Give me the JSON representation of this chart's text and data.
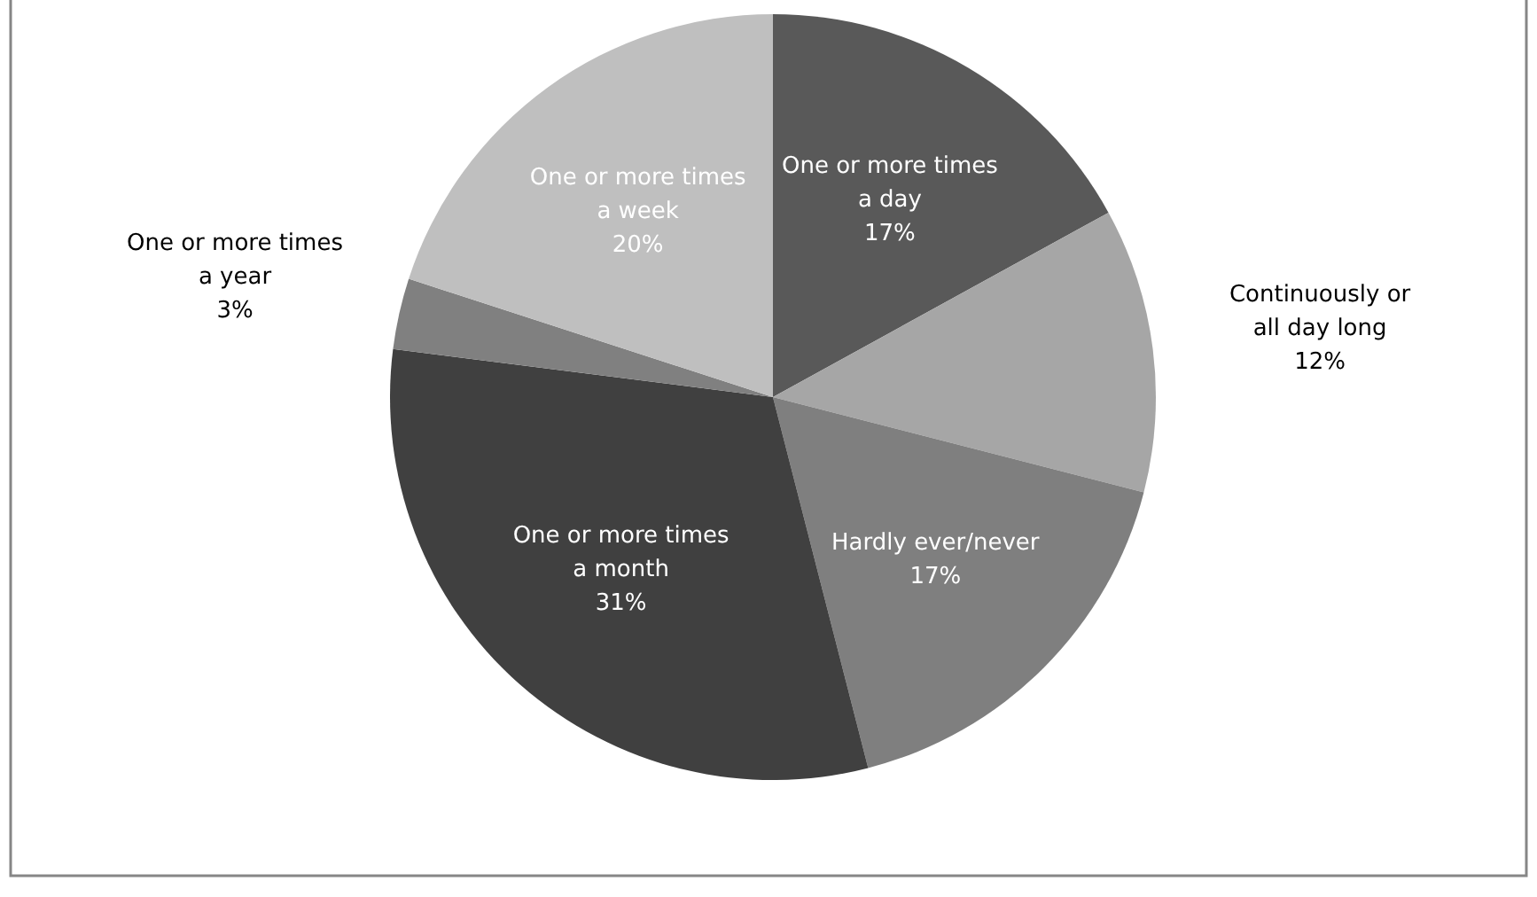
{
  "chart_data": {
    "type": "pie",
    "categories": [
      "One or more times a day",
      "Continuously or all day long",
      "Hardly ever/never",
      "One or more times a month",
      "One or more times a year",
      "One or more times a week"
    ],
    "values": [
      17,
      12,
      17,
      31,
      3,
      20
    ],
    "value_labels": [
      "17%",
      "12%",
      "17%",
      "31%",
      "3%",
      "20%"
    ],
    "colors": [
      "#595959",
      "#a6a6a6",
      "#7f7f7f",
      "#404040",
      "#808080",
      "#bfbfbf"
    ]
  }
}
